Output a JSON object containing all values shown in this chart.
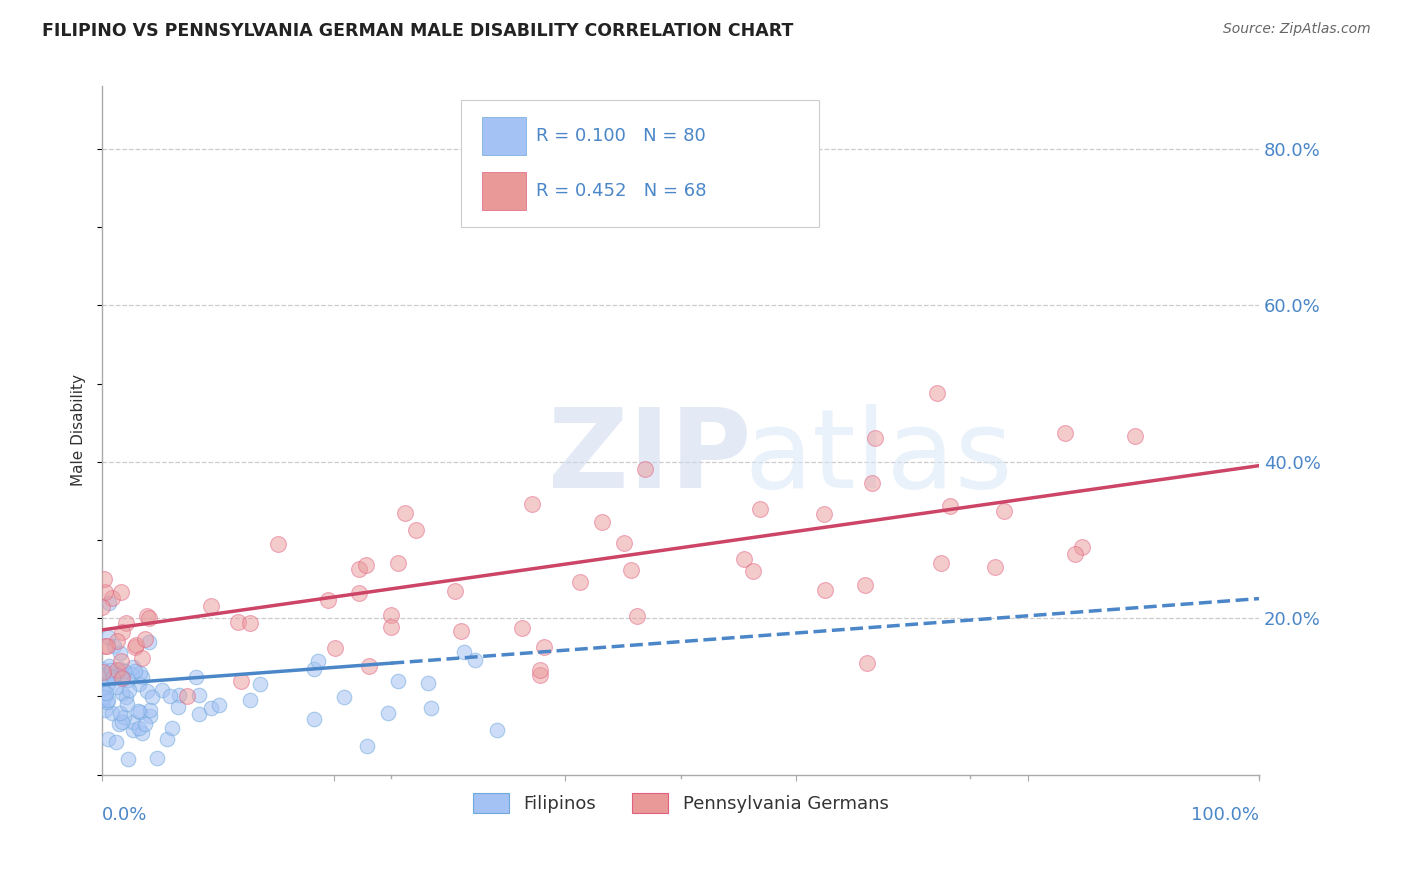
{
  "title": "FILIPINO VS PENNSYLVANIA GERMAN MALE DISABILITY CORRELATION CHART",
  "source": "Source: ZipAtlas.com",
  "ylabel": "Male Disability",
  "xlim": [
    0.0,
    1.0
  ],
  "ylim": [
    0.0,
    0.88
  ],
  "ytick_vals": [
    0.8,
    0.6,
    0.4,
    0.2
  ],
  "legend_bottom": [
    "Filipinos",
    "Pennsylvania Germans"
  ],
  "legend_r_blue": "R = 0.100",
  "legend_n_blue": "N = 80",
  "legend_r_pink": "R = 0.452",
  "legend_n_pink": "N = 68",
  "blue_color": "#6fa8dc",
  "pink_color": "#e06080",
  "blue_fill": "#a4c2f4",
  "pink_fill": "#ea9999",
  "trendline_blue_color": "#4a86c8",
  "trendline_pink_color": "#cc4466",
  "background_color": "#ffffff",
  "grid_color": "#cccccc",
  "axis_label_color": "#4a86c8",
  "title_color": "#222222",
  "blue_trendline_start_x": 0.0,
  "blue_trendline_solid_end_x": 0.25,
  "blue_trendline_end_x": 1.0,
  "blue_trendline_start_y": 0.115,
  "blue_trendline_end_y": 0.225,
  "pink_trendline_start_x": 0.0,
  "pink_trendline_end_x": 1.0,
  "pink_trendline_start_y": 0.185,
  "pink_trendline_end_y": 0.395
}
